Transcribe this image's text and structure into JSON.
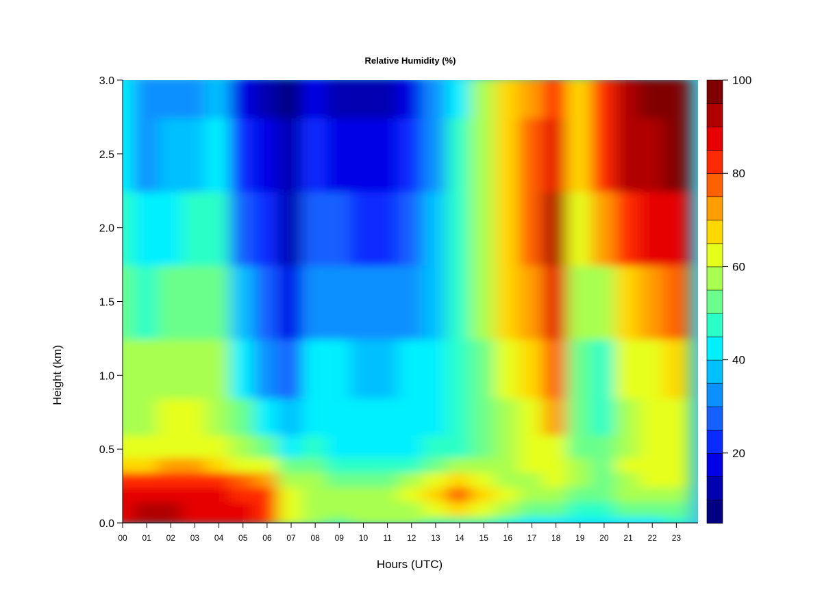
{
  "chart_data": {
    "type": "heatmap",
    "title": "Relative Humidity (%)",
    "xlabel": "Hours (UTC)",
    "ylabel": "Height (km)",
    "x_ticks": [
      "00",
      "01",
      "02",
      "03",
      "04",
      "05",
      "06",
      "07",
      "08",
      "09",
      "10",
      "11",
      "12",
      "13",
      "14",
      "15",
      "16",
      "17",
      "18",
      "19",
      "20",
      "21",
      "22",
      "23"
    ],
    "y_ticks": [
      "0.0",
      "0.5",
      "1.0",
      "1.5",
      "2.0",
      "2.5",
      "3.0"
    ],
    "xlim": [
      0,
      23.9
    ],
    "ylim": [
      0,
      3.0
    ],
    "colorbar": {
      "range": [
        5,
        100
      ],
      "ticks": [
        "20",
        "40",
        "60",
        "80",
        "100"
      ],
      "colors": [
        "#000080",
        "#0000B0",
        "#0000E6",
        "#0A2BFF",
        "#1560FF",
        "#0A90FF",
        "#00C0FF",
        "#00F0FF",
        "#2AFFC8",
        "#6AFF8A",
        "#A8FF50",
        "#E6FF1A",
        "#FFD800",
        "#FF9E00",
        "#FF6000",
        "#FF2A00",
        "#E60000",
        "#B00000",
        "#800000"
      ]
    },
    "heights_km": [
      0.0,
      0.1,
      0.2,
      0.3,
      0.4,
      0.5,
      0.7,
      1.0,
      1.5,
      2.0,
      2.5,
      3.0
    ],
    "hours_utc": [
      0,
      1,
      2,
      3,
      4,
      5,
      6,
      7,
      8,
      9,
      10,
      11,
      12,
      13,
      14,
      15,
      16,
      17,
      18,
      19,
      20,
      21,
      22,
      23
    ],
    "values": [
      [
        88,
        90,
        90,
        89,
        88,
        85,
        82,
        62,
        56,
        54,
        55,
        55,
        55,
        52,
        52,
        50,
        45,
        42,
        44,
        44,
        42,
        44,
        44,
        45
      ],
      [
        88,
        90,
        90,
        89,
        88,
        85,
        82,
        62,
        58,
        56,
        56,
        57,
        58,
        62,
        68,
        60,
        55,
        50,
        50,
        48,
        46,
        52,
        52,
        52
      ],
      [
        87,
        88,
        88,
        88,
        87,
        84,
        80,
        60,
        58,
        56,
        55,
        58,
        62,
        68,
        75,
        68,
        60,
        56,
        56,
        52,
        50,
        56,
        56,
        58
      ],
      [
        80,
        82,
        82,
        82,
        80,
        76,
        72,
        56,
        56,
        52,
        50,
        52,
        55,
        60,
        68,
        62,
        58,
        58,
        60,
        55,
        52,
        58,
        60,
        62
      ],
      [
        66,
        68,
        70,
        70,
        68,
        64,
        60,
        50,
        50,
        46,
        45,
        45,
        48,
        52,
        55,
        55,
        56,
        60,
        62,
        56,
        52,
        60,
        62,
        62
      ],
      [
        60,
        60,
        62,
        62,
        60,
        56,
        50,
        44,
        46,
        44,
        42,
        42,
        44,
        46,
        48,
        52,
        56,
        60,
        64,
        54,
        50,
        58,
        60,
        62
      ],
      [
        58,
        58,
        60,
        60,
        58,
        50,
        42,
        38,
        44,
        42,
        40,
        40,
        42,
        44,
        46,
        52,
        58,
        62,
        70,
        52,
        48,
        58,
        62,
        62
      ],
      [
        55,
        55,
        56,
        56,
        55,
        44,
        34,
        26,
        40,
        40,
        38,
        38,
        40,
        42,
        46,
        54,
        62,
        66,
        78,
        52,
        48,
        60,
        64,
        66
      ],
      [
        50,
        48,
        50,
        52,
        50,
        36,
        28,
        18,
        34,
        34,
        32,
        30,
        32,
        38,
        46,
        56,
        66,
        72,
        88,
        56,
        56,
        66,
        72,
        76
      ],
      [
        46,
        40,
        44,
        46,
        46,
        28,
        20,
        14,
        26,
        26,
        24,
        22,
        26,
        36,
        46,
        58,
        68,
        76,
        90,
        62,
        70,
        84,
        86,
        86
      ],
      [
        44,
        34,
        36,
        38,
        40,
        22,
        15,
        10,
        20,
        18,
        16,
        16,
        20,
        34,
        46,
        58,
        68,
        78,
        86,
        66,
        80,
        90,
        94,
        96
      ],
      [
        42,
        30,
        30,
        32,
        36,
        18,
        12,
        8,
        16,
        14,
        13,
        14,
        18,
        32,
        44,
        56,
        66,
        74,
        80,
        66,
        82,
        92,
        96,
        98
      ]
    ]
  }
}
